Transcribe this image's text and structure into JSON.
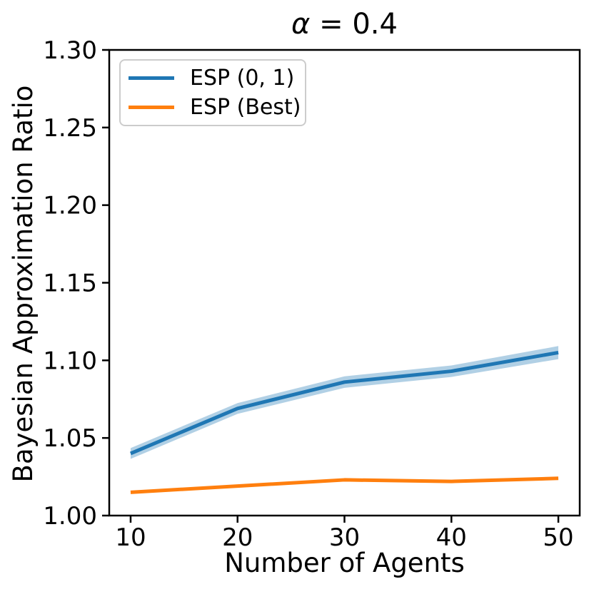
{
  "figure": {
    "title_symbol": "α",
    "title_rest": " = 0.4"
  },
  "chart_data": {
    "type": "line",
    "title": "α = 0.4",
    "xlabel": "Number of Agents",
    "ylabel": "Bayesian Approximation Ratio",
    "x": [
      10,
      20,
      30,
      40,
      50
    ],
    "series": [
      {
        "name": "ESP (0, 1)",
        "color": "#1f77b4",
        "values": [
          1.04,
          1.069,
          1.086,
          1.093,
          1.105
        ],
        "band_lower": [
          1.0365,
          1.0655,
          1.0823,
          1.0893,
          1.1008
        ],
        "band_upper": [
          1.0435,
          1.0725,
          1.0897,
          1.0967,
          1.1092
        ],
        "band_color": "rgba(31,119,180,0.35)"
      },
      {
        "name": "ESP (Best)",
        "color": "#ff7f0e",
        "values": [
          1.015,
          1.019,
          1.023,
          1.022,
          1.024
        ]
      }
    ],
    "xlim": [
      8,
      52
    ],
    "ylim": [
      1.0,
      1.3
    ],
    "xticks": {
      "values": [
        10,
        20,
        30,
        40,
        50
      ],
      "labels": [
        "10",
        "20",
        "30",
        "40",
        "50"
      ]
    },
    "yticks": {
      "values": [
        1.0,
        1.05,
        1.1,
        1.15,
        1.2,
        1.25,
        1.3
      ],
      "labels": [
        "1.00",
        "1.05",
        "1.10",
        "1.15",
        "1.20",
        "1.25",
        "1.30"
      ]
    },
    "legend": {
      "position": "upper left",
      "entries": [
        "ESP (0, 1)",
        "ESP (Best)"
      ]
    },
    "grid": false,
    "axis_color": "#000000",
    "legend_border_color": "#cccccc"
  }
}
